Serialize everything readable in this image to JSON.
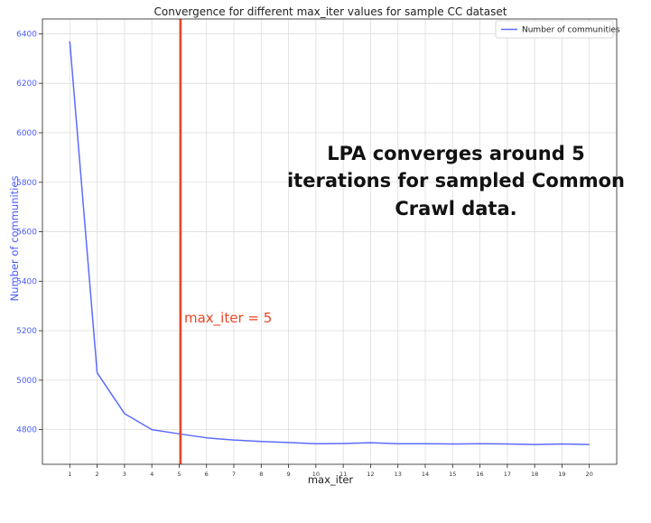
{
  "chart_data": {
    "type": "line",
    "title": "Convergence for different max_iter values for sample CC dataset",
    "xlabel": "max_iter",
    "ylabel": "Number of communities",
    "x": [
      1,
      2,
      3,
      4,
      5,
      6,
      7,
      8,
      9,
      10,
      11,
      12,
      13,
      14,
      15,
      16,
      17,
      18,
      19,
      20
    ],
    "series": [
      {
        "name": "Number of communities",
        "color": "#5b6cff",
        "values": [
          6370,
          5030,
          4865,
          4800,
          4783,
          4767,
          4758,
          4752,
          4748,
          4743,
          4744,
          4747,
          4743,
          4743,
          4742,
          4743,
          4742,
          4740,
          4742,
          4740
        ]
      }
    ],
    "xlim": [
      0,
      21
    ],
    "ylim": [
      4660,
      6460
    ],
    "xticks": [
      "1",
      "2",
      "3",
      "4",
      "5",
      "6",
      "7",
      "8",
      "9",
      "10",
      "11",
      "12",
      "13",
      "14",
      "15",
      "16",
      "17",
      "18",
      "19",
      "20"
    ],
    "yticks": [
      4800,
      5000,
      5200,
      5400,
      5600,
      5800,
      6000,
      6200,
      6400
    ],
    "grid": true,
    "legend_position": "top-right",
    "vline": {
      "x": 5.05,
      "color": "#ee4422",
      "label": "max_iter = 5"
    },
    "annotation_lines": [
      "LPA converges around 5",
      "iterations for sampled Common",
      "Crawl data."
    ]
  }
}
